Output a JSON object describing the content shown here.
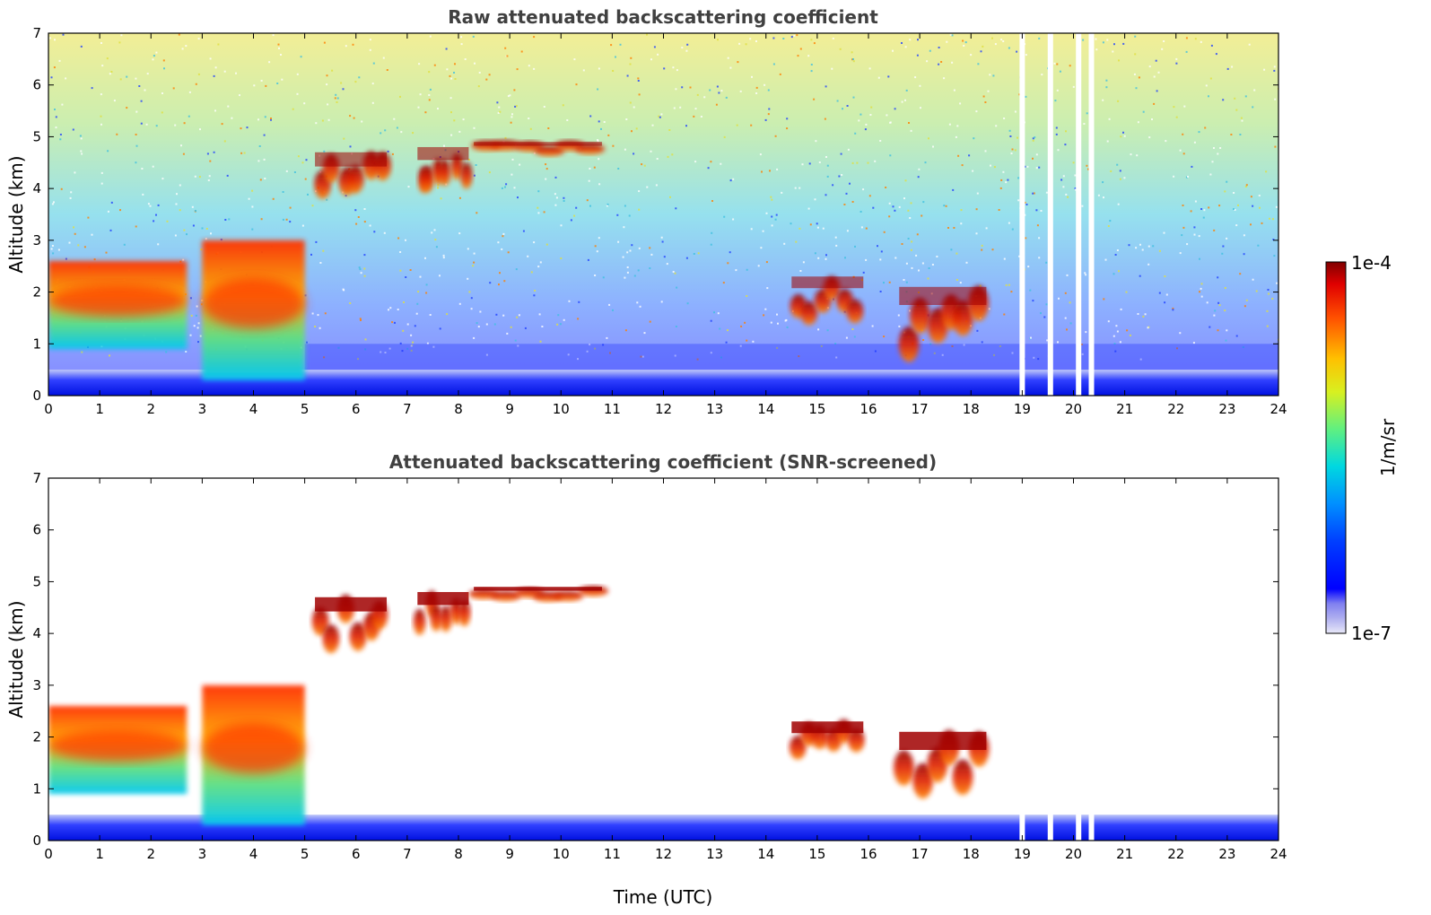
{
  "chart_data": [
    {
      "type": "heatmap",
      "title": "Raw attenuated backscattering coefficient",
      "xlabel": "",
      "ylabel": "Altitude (km)",
      "xlim": [
        0,
        24
      ],
      "ylim": [
        0,
        7
      ],
      "xticks": [
        "0",
        "1",
        "2",
        "3",
        "4",
        "5",
        "6",
        "7",
        "8",
        "9",
        "10",
        "11",
        "12",
        "13",
        "14",
        "15",
        "16",
        "17",
        "18",
        "19",
        "20",
        "21",
        "22",
        "23",
        "24"
      ],
      "yticks": [
        "0",
        "1",
        "2",
        "3",
        "4",
        "5",
        "6",
        "7"
      ],
      "grid": false,
      "features": [
        {
          "kind": "boundary-layer",
          "t_start": 0,
          "t_end": 2.7,
          "alt_bottom": 0.9,
          "alt_top": 2.6,
          "level": "high"
        },
        {
          "kind": "boundary-layer",
          "t_start": 3.0,
          "t_end": 5.0,
          "alt_bottom": 0.3,
          "alt_top": 3.0,
          "level": "medium"
        },
        {
          "kind": "cloud",
          "t_start": 5.2,
          "t_end": 6.6,
          "alt_bottom": 3.6,
          "alt_top": 4.7,
          "level": "high"
        },
        {
          "kind": "cloud",
          "t_start": 7.2,
          "t_end": 8.2,
          "alt_bottom": 3.8,
          "alt_top": 4.8,
          "level": "high"
        },
        {
          "kind": "cloud",
          "t_start": 8.3,
          "t_end": 10.8,
          "alt_bottom": 4.6,
          "alt_top": 4.9,
          "level": "high"
        },
        {
          "kind": "cloud",
          "t_start": 14.5,
          "t_end": 15.9,
          "alt_bottom": 1.4,
          "alt_top": 2.3,
          "level": "high"
        },
        {
          "kind": "cloud",
          "t_start": 16.6,
          "t_end": 18.3,
          "alt_bottom": 0.7,
          "alt_top": 2.1,
          "level": "high"
        }
      ],
      "missing_data_times": [
        19.0,
        19.55,
        20.1,
        20.35
      ]
    },
    {
      "type": "heatmap",
      "title": "Attenuated backscattering coefficient (SNR-screened)",
      "xlabel": "Time (UTC)",
      "ylabel": "Altitude (km)",
      "xlim": [
        0,
        24
      ],
      "ylim": [
        0,
        7
      ],
      "xticks": [
        "0",
        "1",
        "2",
        "3",
        "4",
        "5",
        "6",
        "7",
        "8",
        "9",
        "10",
        "11",
        "12",
        "13",
        "14",
        "15",
        "16",
        "17",
        "18",
        "19",
        "20",
        "21",
        "22",
        "23",
        "24"
      ],
      "yticks": [
        "0",
        "1",
        "2",
        "3",
        "4",
        "5",
        "6",
        "7"
      ],
      "grid": false,
      "features": [
        {
          "kind": "boundary-layer",
          "t_start": 0,
          "t_end": 2.7,
          "alt_bottom": 0.9,
          "alt_top": 2.6,
          "level": "high"
        },
        {
          "kind": "boundary-layer",
          "t_start": 3.0,
          "t_end": 5.0,
          "alt_bottom": 0.3,
          "alt_top": 3.0,
          "level": "medium"
        },
        {
          "kind": "cloud",
          "t_start": 5.2,
          "t_end": 6.6,
          "alt_bottom": 3.6,
          "alt_top": 4.7,
          "level": "high"
        },
        {
          "kind": "cloud",
          "t_start": 7.2,
          "t_end": 8.2,
          "alt_bottom": 3.8,
          "alt_top": 4.8,
          "level": "high"
        },
        {
          "kind": "cloud",
          "t_start": 8.3,
          "t_end": 10.8,
          "alt_bottom": 4.6,
          "alt_top": 4.9,
          "level": "high"
        },
        {
          "kind": "cloud",
          "t_start": 14.5,
          "t_end": 15.9,
          "alt_bottom": 1.4,
          "alt_top": 2.3,
          "level": "high"
        },
        {
          "kind": "cloud",
          "t_start": 16.6,
          "t_end": 18.3,
          "alt_bottom": 0.7,
          "alt_top": 2.1,
          "level": "high"
        }
      ],
      "missing_data_times": [
        19.0,
        19.55,
        20.1,
        20.35
      ]
    }
  ],
  "colorbar": {
    "label": "1/m/sr",
    "max_label": "1e-4",
    "min_label": "1e-7",
    "scale": "log",
    "colormap": "jet"
  }
}
